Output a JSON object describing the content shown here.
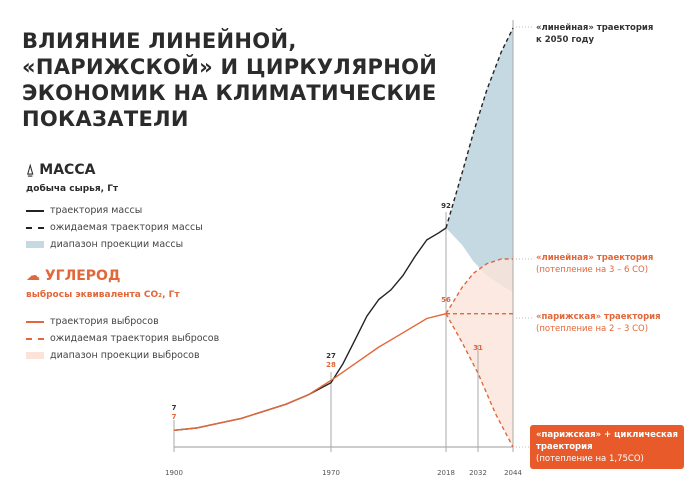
{
  "title": "ВЛИЯНИЕ ЛИНЕЙНОЙ, «ПАРИЖСКОЙ» И ЦИРКУЛЯРНОЙ ЭКОНОМИК НА КЛИМАТИЧЕСКИЕ ПОКАЗАТЕЛИ",
  "mass": {
    "icon": "weight-icon",
    "heading": "МАССА",
    "unit": "добыча сырья, Гт",
    "legend": [
      "траектория массы",
      "ожидаемая траектория массы",
      "диапазон проекции массы"
    ]
  },
  "carbon": {
    "icon": "cloud-icon",
    "heading": "УГЛЕРОД",
    "unit": "выбросы эквивалента CO₂, Гт",
    "legend": [
      "траектория выбросов",
      "ожидаемая траектория выбросов",
      "диапазон проекции выбросов"
    ]
  },
  "annotations": {
    "linear_mass": "«линейная» траектория к 2050 году",
    "linear_carbon": "«линейная» траектория",
    "linear_carbon_note": "(потепление на 3 – 6 CO)",
    "paris": "«парижская» траектория",
    "paris_note": "(потепление на 2 – 3 CO)",
    "circular": "«парижская» + циклическая траектория",
    "circular_note": "(потепление на 1,75CO)"
  },
  "colors": {
    "mass": "#222222",
    "carbon": "#e2673a",
    "mass_band": "#c5d9e3",
    "carbon_band": "#fbe3da",
    "box": "#e85a2a"
  },
  "chart_data": {
    "type": "line",
    "x_ticks": [
      1900,
      1970,
      2018,
      2032,
      2044
    ],
    "labels": [
      {
        "x": 1900,
        "mass": "7",
        "carbon": "7"
      },
      {
        "x": 1970,
        "mass": "27",
        "carbon": "28"
      },
      {
        "x": 2018,
        "mass": "92",
        "carbon": "56"
      },
      {
        "x": 2032,
        "carbon": "31"
      }
    ],
    "series": [
      {
        "name": "траектория массы",
        "kind": "mass",
        "x": [
          1900,
          1910,
          1920,
          1930,
          1940,
          1950,
          1960,
          1970,
          1975,
          1980,
          1985,
          1990,
          1995,
          2000,
          2005,
          2010,
          2015,
          2018
        ],
        "y": [
          7,
          8,
          10,
          12,
          15,
          18,
          22,
          27,
          35,
          45,
          55,
          62,
          66,
          72,
          80,
          87,
          90,
          92
        ]
      },
      {
        "name": "траектория выбросов",
        "kind": "carbon",
        "x": [
          1900,
          1910,
          1920,
          1930,
          1940,
          1950,
          1960,
          1970,
          1980,
          1990,
          2000,
          2010,
          2018
        ],
        "y": [
          7,
          8,
          10,
          12,
          15,
          18,
          22,
          28,
          35,
          42,
          48,
          54,
          56
        ]
      },
      {
        "name": "mass-linear",
        "kind": "mass-dash",
        "x": [
          2018,
          2025,
          2030,
          2035,
          2040,
          2044
        ],
        "y": [
          92,
          115,
          132,
          150,
          166,
          176
        ]
      },
      {
        "name": "mass-lower",
        "kind": "band-edge",
        "x": [
          2018,
          2025,
          2030,
          2035,
          2040,
          2044
        ],
        "y": [
          92,
          85,
          78,
          72,
          68,
          65
        ]
      },
      {
        "name": "carbon-linear",
        "kind": "carbon-dash",
        "x": [
          2018,
          2025,
          2030,
          2035,
          2040,
          2044
        ],
        "y": [
          56,
          67,
          73,
          77,
          79,
          79
        ]
      },
      {
        "name": "carbon-paris",
        "kind": "carbon-dash",
        "x": [
          2018,
          2044
        ],
        "y": [
          56,
          56
        ]
      },
      {
        "name": "carbon-circular",
        "kind": "carbon-dash",
        "x": [
          2018,
          2025,
          2032,
          2038,
          2044
        ],
        "y": [
          56,
          44,
          31,
          14,
          0
        ]
      }
    ],
    "ylim": [
      0,
      180
    ]
  }
}
